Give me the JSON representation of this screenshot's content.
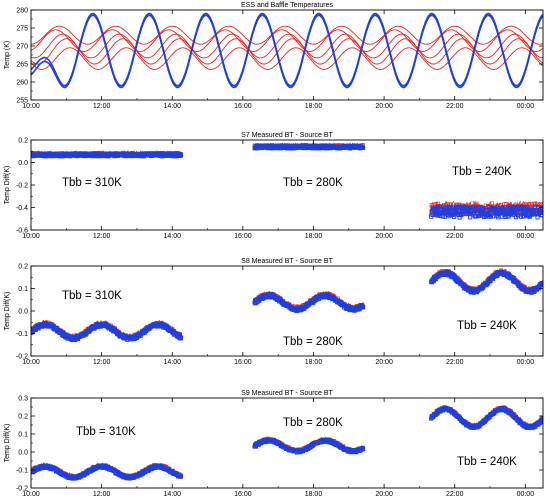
{
  "colors": {
    "red": "#e8231b",
    "blue": "#1f3fe0",
    "axis": "#000000"
  },
  "chart_data": [
    {
      "type": "line",
      "title": "ESS and Baffle Temperatures",
      "ylabel": "Temp (K)",
      "xlim": [
        "10:00",
        "00:00"
      ],
      "ylim": [
        255,
        280
      ],
      "yticks": [
        "255",
        "260",
        "265",
        "270",
        "275",
        "280"
      ],
      "xticks": [
        "10:00",
        "12:00",
        "14:00",
        "16:00",
        "18:00",
        "20:00",
        "22:00",
        "00:00"
      ],
      "series": [
        {
          "color": "red",
          "x_range": [
            "10:00",
            "00:30"
          ],
          "baseline": 271.5,
          "amplitude": 3.0,
          "period_hours": 1.6,
          "phase_hours": 0.3
        },
        {
          "color": "red",
          "x_range": [
            "10:00",
            "00:30"
          ],
          "baseline": 270.0,
          "amplitude": 3.3,
          "period_hours": 1.6,
          "phase_hours": 0.5
        },
        {
          "color": "red",
          "x_range": [
            "10:00",
            "00:30"
          ],
          "baseline": 268.5,
          "amplitude": 3.5,
          "period_hours": 1.6,
          "phase_hours": 0.6
        },
        {
          "color": "red",
          "x_range": [
            "10:00",
            "00:30"
          ],
          "baseline": 266.5,
          "amplitude": 3.0,
          "period_hours": 1.6,
          "phase_hours": 0.7
        },
        {
          "color": "red",
          "x_range": [
            "10:00",
            "00:30"
          ],
          "baseline": 273.0,
          "amplitude": 2.5,
          "period_hours": 1.6,
          "phase_hours": 0.4
        },
        {
          "color": "blue",
          "x_range": [
            "10:00",
            "00:30"
          ],
          "baseline": 269.0,
          "amplitude": 10.0,
          "period_hours": 1.6,
          "phase_hours": 1.35,
          "start_value": 263.5
        },
        {
          "color": "blue",
          "x_range": [
            "10:00",
            "00:30"
          ],
          "baseline": 268.5,
          "amplitude": 10.0,
          "period_hours": 1.6,
          "phase_hours": 1.35,
          "start_value": 262.0
        }
      ]
    },
    {
      "type": "scatter",
      "title": "S7 Measured BT - Source BT",
      "ylabel": "Temp Diff(K)",
      "xlim": [
        "10:00",
        "00:00"
      ],
      "ylim": [
        -0.6,
        0.2
      ],
      "yticks": [
        "-0.6",
        "-0.4",
        "-0.2",
        "0.0",
        "0.2"
      ],
      "xticks": [
        "10:00",
        "12:00",
        "14:00",
        "16:00",
        "18:00",
        "20:00",
        "22:00",
        "00:00"
      ],
      "segments": [
        {
          "label": "Tbb = 310K",
          "x_range": [
            "10:00",
            "14:15"
          ],
          "mean": 0.07,
          "spread": 0.012,
          "wave_amplitude": 0.0,
          "period_hours": 1.6
        },
        {
          "label": "Tbb = 280K",
          "x_range": [
            "16:20",
            "19:25"
          ],
          "mean": 0.14,
          "spread": 0.012,
          "wave_amplitude": 0.0,
          "period_hours": 1.6
        },
        {
          "label": "Tbb = 240K",
          "x_range": [
            "21:20",
            "00:30"
          ],
          "mean": -0.43,
          "spread": 0.05,
          "wave_amplitude": 0.0,
          "period_hours": 1.6
        }
      ]
    },
    {
      "type": "scatter",
      "title": "S8 Measured BT - Source BT",
      "ylabel": "Temp Diff(K)",
      "xlim": [
        "10:00",
        "00:00"
      ],
      "ylim": [
        -0.2,
        0.2
      ],
      "yticks": [
        "-0.2",
        "-0.1",
        "0.0",
        "0.1",
        "0.2"
      ],
      "xticks": [
        "10:00",
        "12:00",
        "14:00",
        "16:00",
        "18:00",
        "20:00",
        "22:00",
        "00:00"
      ],
      "segments": [
        {
          "label": "Tbb = 310K",
          "x_range": [
            "10:00",
            "14:15"
          ],
          "mean": -0.09,
          "spread": 0.008,
          "wave_amplitude": 0.03,
          "period_hours": 1.6
        },
        {
          "label": "Tbb = 280K",
          "x_range": [
            "16:20",
            "19:25"
          ],
          "mean": 0.04,
          "spread": 0.008,
          "wave_amplitude": 0.03,
          "period_hours": 1.6
        },
        {
          "label": "Tbb = 240K",
          "x_range": [
            "21:20",
            "00:30"
          ],
          "mean": 0.13,
          "spread": 0.008,
          "wave_amplitude": 0.04,
          "period_hours": 1.6
        }
      ]
    },
    {
      "type": "scatter",
      "title": "S9 Measured BT - Source BT",
      "ylabel": "Temp Diff(K)",
      "xlim": [
        "10:00",
        "00:00"
      ],
      "ylim": [
        -0.2,
        0.3
      ],
      "yticks": [
        "-0.2",
        "-0.1",
        "0.0",
        "0.1",
        "0.2",
        "0.3"
      ],
      "xticks": [
        "10:00",
        "12:00",
        "14:00",
        "16:00",
        "18:00",
        "20:00",
        "22:00",
        "00:00"
      ],
      "segments": [
        {
          "label": "Tbb = 310K",
          "x_range": [
            "10:00",
            "14:15"
          ],
          "mean": -0.11,
          "spread": 0.007,
          "wave_amplitude": 0.03,
          "period_hours": 1.6
        },
        {
          "label": "Tbb = 280K",
          "x_range": [
            "16:20",
            "19:25"
          ],
          "mean": 0.035,
          "spread": 0.007,
          "wave_amplitude": 0.03,
          "period_hours": 1.6
        },
        {
          "label": "Tbb = 240K",
          "x_range": [
            "21:20",
            "00:30"
          ],
          "mean": 0.19,
          "spread": 0.007,
          "wave_amplitude": 0.05,
          "period_hours": 1.6
        }
      ]
    }
  ]
}
